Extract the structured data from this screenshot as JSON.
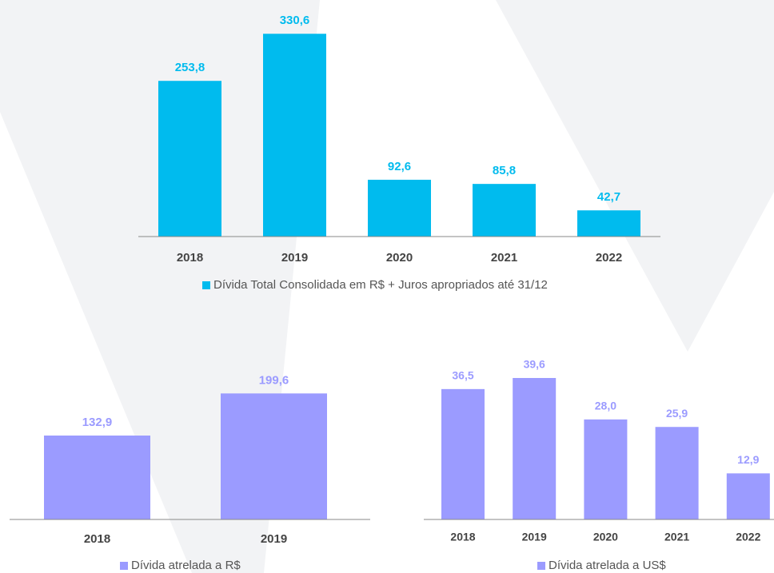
{
  "chart_data": [
    {
      "type": "bar",
      "categories": [
        "2018",
        "2019",
        "2020",
        "2021",
        "2022"
      ],
      "series": [
        {
          "name": "Dívida Total Consolidada em R$ + Juros apropriados até 31/12",
          "color": "#00bbee",
          "values": [
            253.8,
            330.6,
            92.6,
            85.8,
            42.7
          ],
          "value_labels": [
            "253,8",
            "330,6",
            "92,6",
            "85,8",
            "42,7"
          ]
        }
      ],
      "ylim": [
        0,
        400
      ]
    },
    {
      "type": "bar",
      "categories": [
        "2018",
        "2019"
      ],
      "series": [
        {
          "name": "Dívida atrelada a R$",
          "color": "#9b9bff",
          "values": [
            132.9,
            199.6
          ],
          "value_labels": [
            "132,9",
            "199,6"
          ]
        }
      ],
      "ylim": [
        0,
        250
      ]
    },
    {
      "type": "bar",
      "categories": [
        "2018",
        "2019",
        "2020",
        "2021",
        "2022"
      ],
      "series": [
        {
          "name": "Dívida atrelada a US$",
          "color": "#9b9bff",
          "values": [
            36.5,
            39.6,
            28.0,
            25.9,
            12.9
          ],
          "value_labels": [
            "36,5",
            "39,6",
            "28,0",
            "25,9",
            "12,9"
          ]
        }
      ],
      "ylim": [
        0,
        50
      ]
    }
  ]
}
